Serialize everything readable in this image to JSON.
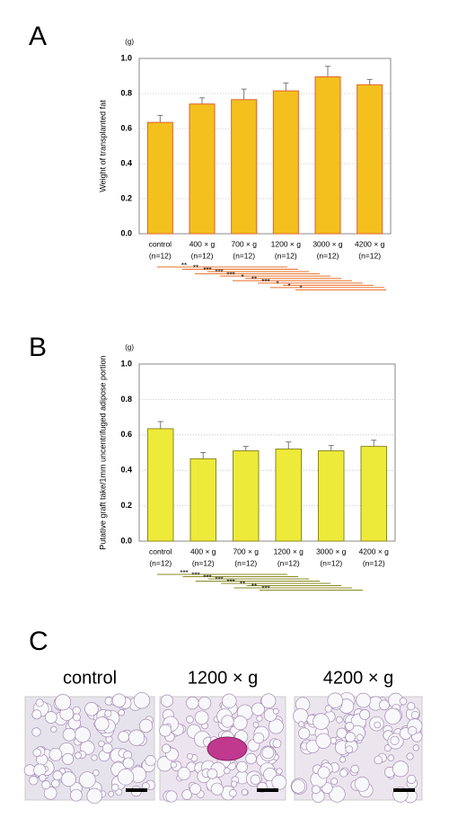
{
  "panels": [
    "A",
    "B",
    "C"
  ],
  "chart_data": [
    {
      "type": "bar",
      "unit": "(g)",
      "y_label": "Weight of transplanted fat",
      "categories": [
        "control",
        "400 × g",
        "700 × g",
        "1200 × g",
        "3000 × g",
        "4200 × g"
      ],
      "n_labels": [
        "(n=12)",
        "(n=12)",
        "(n=12)",
        "(n=12)",
        "(n=12)",
        "(n=12)"
      ],
      "values": [
        0.635,
        0.74,
        0.765,
        0.815,
        0.895,
        0.85
      ],
      "errors": [
        0.04,
        0.035,
        0.06,
        0.045,
        0.06,
        0.03
      ],
      "color": "#f4c01e",
      "edge_color": "#e0602a",
      "line_color": "#e8702a",
      "ylim": [
        0,
        1
      ],
      "yticks": [
        {
          "value": 0,
          "label": "0.0"
        },
        0.2,
        0.4,
        0.6,
        0.8,
        {
          "value": 1,
          "label": "1.0"
        }
      ],
      "grid": true,
      "significance": [
        "**",
        "**",
        "***",
        "***",
        "***",
        "*",
        "**",
        "***",
        "*",
        "*",
        "*"
      ]
    },
    {
      "type": "bar",
      "unit": "(g)",
      "y_label": "Putative graft take/1mm uncentrifuged adipose portion",
      "categories": [
        "control",
        "400 × g",
        "700 × g",
        "1200 × g",
        "3000 × g",
        "4200 × g"
      ],
      "n_labels": [
        "(n=12)",
        "(n=12)",
        "(n=12)",
        "(n=12)",
        "(n=12)",
        "(n=12)"
      ],
      "values": [
        0.635,
        0.465,
        0.51,
        0.52,
        0.51,
        0.535
      ],
      "errors": [
        0.04,
        0.035,
        0.025,
        0.04,
        0.03,
        0.035
      ],
      "color": "#eeea3a",
      "edge_color": "#8a8a20",
      "line_color": "#8a8a20",
      "ylim": [
        0,
        1
      ],
      "yticks": [
        {
          "value": 0,
          "label": "0.0"
        },
        0.2,
        0.4,
        0.6,
        0.8,
        {
          "value": 1,
          "label": "1.0"
        }
      ],
      "grid": true,
      "significance": [
        "***",
        "***",
        "***",
        "***",
        "***",
        "**",
        "**",
        "***"
      ]
    }
  ],
  "images": [
    {
      "caption": "control"
    },
    {
      "caption": "1200 × g"
    },
    {
      "caption": "4200 × g"
    }
  ]
}
